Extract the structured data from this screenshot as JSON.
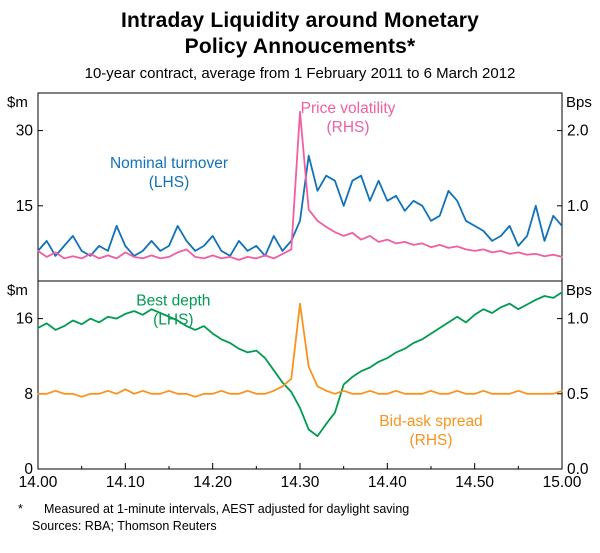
{
  "title": {
    "line1": "Intraday Liquidity around Monetary",
    "line2": "Policy Annoucements*"
  },
  "subtitle": "10-year contract, average from 1 February 2011 to 6 March 2012",
  "footnote": {
    "marker": "*",
    "text": "Measured at 1-minute intervals, AEST adjusted for daylight saving"
  },
  "sources": "Sources: RBA; Thomson Reuters",
  "colors": {
    "blue": "#1172ba",
    "pink": "#ef5fa2",
    "green": "#009b50",
    "orange": "#f79420",
    "axis": "#000000"
  },
  "chart_data": {
    "type": "line",
    "x_axis": {
      "range": [
        0,
        60
      ],
      "unit": "time (AEST), minutes from 14.00 to 15.00, 1-minute intervals",
      "major_ticks": [
        0,
        10,
        20,
        30,
        40,
        50,
        60
      ],
      "minor_ticks": [
        5,
        15,
        25,
        35,
        45,
        55
      ],
      "labels": [
        "14.00",
        "14.10",
        "14.20",
        "14.30",
        "14.40",
        "14.50",
        "15.00"
      ]
    },
    "panels": [
      {
        "name": "top",
        "left_axis": {
          "unit": "$m",
          "range": [
            0,
            37.5
          ],
          "ticks": [
            {
              "v": 15,
              "label": "15"
            },
            {
              "v": 30,
              "label": "30"
            }
          ]
        },
        "right_axis": {
          "unit": "Bps",
          "range": [
            0,
            2.5
          ],
          "ticks": [
            {
              "v": 1,
              "label": "1.0"
            },
            {
              "v": 2,
              "label": "2.0"
            }
          ]
        },
        "series": [
          {
            "name": "Nominal turnover (LHS)",
            "axis": "left",
            "color": "blue",
            "values": [
              6,
              8,
              5,
              7,
              9,
              6,
              5,
              7,
              6,
              11,
              7,
              5,
              6,
              8,
              6,
              7,
              11,
              8,
              6,
              7,
              9,
              6,
              5,
              8,
              6,
              7,
              5,
              9,
              6,
              8,
              12,
              25,
              18,
              21,
              20,
              15,
              20,
              21,
              16,
              20,
              16,
              17,
              14,
              16,
              15,
              12,
              13,
              18,
              16,
              12,
              11,
              10,
              8,
              9,
              11,
              7,
              9,
              15,
              8,
              13,
              11
            ]
          },
          {
            "name": "Price volatility (RHS)",
            "axis": "right",
            "color": "pink",
            "values": [
              0.4,
              0.32,
              0.38,
              0.3,
              0.33,
              0.3,
              0.36,
              0.3,
              0.34,
              0.3,
              0.38,
              0.32,
              0.3,
              0.34,
              0.3,
              0.32,
              0.38,
              0.42,
              0.32,
              0.3,
              0.34,
              0.3,
              0.32,
              0.28,
              0.32,
              0.3,
              0.34,
              0.3,
              0.36,
              0.42,
              2.25,
              0.95,
              0.8,
              0.72,
              0.65,
              0.6,
              0.64,
              0.55,
              0.6,
              0.52,
              0.55,
              0.5,
              0.52,
              0.48,
              0.5,
              0.45,
              0.48,
              0.44,
              0.46,
              0.42,
              0.4,
              0.42,
              0.38,
              0.4,
              0.36,
              0.38,
              0.35,
              0.36,
              0.33,
              0.35,
              0.32
            ]
          }
        ],
        "annotations": [
          {
            "lines": [
              "Nominal turnover",
              "(LHS)"
            ],
            "color": "blue",
            "x": 15,
            "y": 22.5
          },
          {
            "lines": [
              "Price volatility",
              "(RHS)"
            ],
            "color": "pink",
            "x": 35.5,
            "y": 33.5
          }
        ]
      },
      {
        "name": "bottom",
        "left_axis": {
          "unit": "$m",
          "range": [
            0,
            20
          ],
          "ticks": [
            {
              "v": 0,
              "label": "0"
            },
            {
              "v": 8,
              "label": "8"
            },
            {
              "v": 16,
              "label": "16"
            }
          ]
        },
        "right_axis": {
          "unit": "Bps",
          "range": [
            0,
            1.25
          ],
          "ticks": [
            {
              "v": 0,
              "label": "0.0"
            },
            {
              "v": 0.5,
              "label": "0.5"
            },
            {
              "v": 1,
              "label": "1.0"
            }
          ]
        },
        "series": [
          {
            "name": "Best depth (LHS)",
            "axis": "left",
            "color": "green",
            "values": [
              15,
              15.5,
              14.8,
              15.2,
              15.8,
              15.4,
              16,
              15.6,
              16.2,
              16,
              16.5,
              16.8,
              16.4,
              17,
              16.6,
              16.2,
              15.8,
              15.2,
              14.8,
              15.2,
              14.4,
              13.8,
              13.4,
              12.8,
              12.4,
              12.6,
              11.8,
              10.5,
              9.2,
              8.2,
              6.5,
              4.2,
              3.5,
              4.8,
              6,
              9,
              9.8,
              10.4,
              10.8,
              11.4,
              11.8,
              12.4,
              12.8,
              13.4,
              13.8,
              14.4,
              15,
              15.6,
              16.2,
              15.6,
              16.4,
              17,
              16.6,
              17.2,
              17.6,
              17,
              17.5,
              18,
              18.4,
              18.2,
              18.8
            ]
          },
          {
            "name": "Bid-ask spread (RHS)",
            "axis": "right",
            "color": "orange",
            "values": [
              0.5,
              0.5,
              0.52,
              0.5,
              0.5,
              0.48,
              0.5,
              0.5,
              0.52,
              0.5,
              0.53,
              0.5,
              0.52,
              0.5,
              0.5,
              0.52,
              0.5,
              0.5,
              0.48,
              0.5,
              0.5,
              0.52,
              0.5,
              0.5,
              0.52,
              0.5,
              0.5,
              0.52,
              0.55,
              0.6,
              1.1,
              0.68,
              0.55,
              0.52,
              0.5,
              0.52,
              0.5,
              0.5,
              0.52,
              0.5,
              0.5,
              0.52,
              0.5,
              0.5,
              0.5,
              0.52,
              0.5,
              0.5,
              0.52,
              0.5,
              0.5,
              0.52,
              0.5,
              0.5,
              0.5,
              0.52,
              0.5,
              0.5,
              0.5,
              0.5,
              0.52
            ]
          }
        ],
        "annotations": [
          {
            "lines": [
              "Best depth",
              "(LHS)"
            ],
            "color": "green",
            "x": 15.5,
            "y": 17.4
          },
          {
            "lines": [
              "Bid-ask spread",
              "(RHS)"
            ],
            "color": "orange",
            "x": 45,
            "y": 4.6
          }
        ]
      }
    ]
  }
}
